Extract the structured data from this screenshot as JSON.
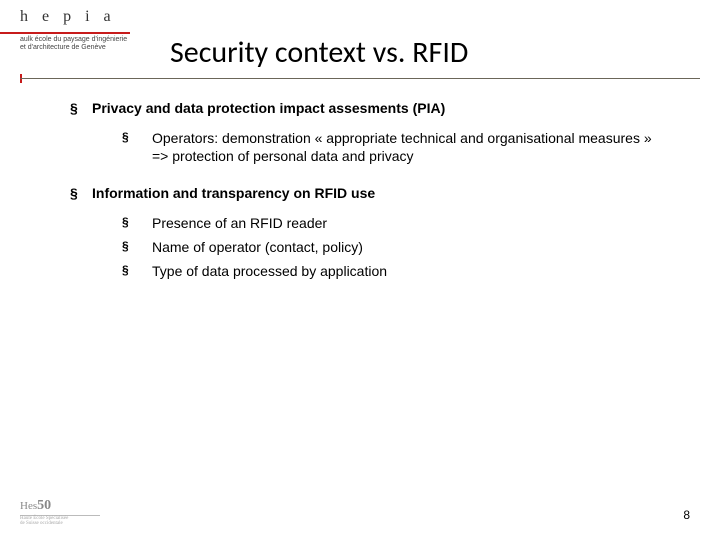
{
  "logo": {
    "letters": "hepia",
    "subtitle_l1": "aulk école du paysage d'ingénierie",
    "subtitle_l2": "et d'architecture de Genève"
  },
  "title": "Security context vs. RFID",
  "bullets": {
    "a": {
      "text": "Privacy and data protection impact assesments (PIA)",
      "sub": [
        "Operators: demonstration « appropriate technical and organisational measures » => protection of personal data and privacy"
      ]
    },
    "b": {
      "text": "Information and transparency on RFID use",
      "sub": [
        "Presence of an RFID reader",
        "Name of operator (contact, policy)",
        "Type of data processed by application"
      ]
    }
  },
  "footer_logo": {
    "brand": "Hes",
    "year": "50"
  },
  "page_number": "8",
  "colors": {
    "accent": "#c71b1b",
    "rule": "#6b6659"
  }
}
